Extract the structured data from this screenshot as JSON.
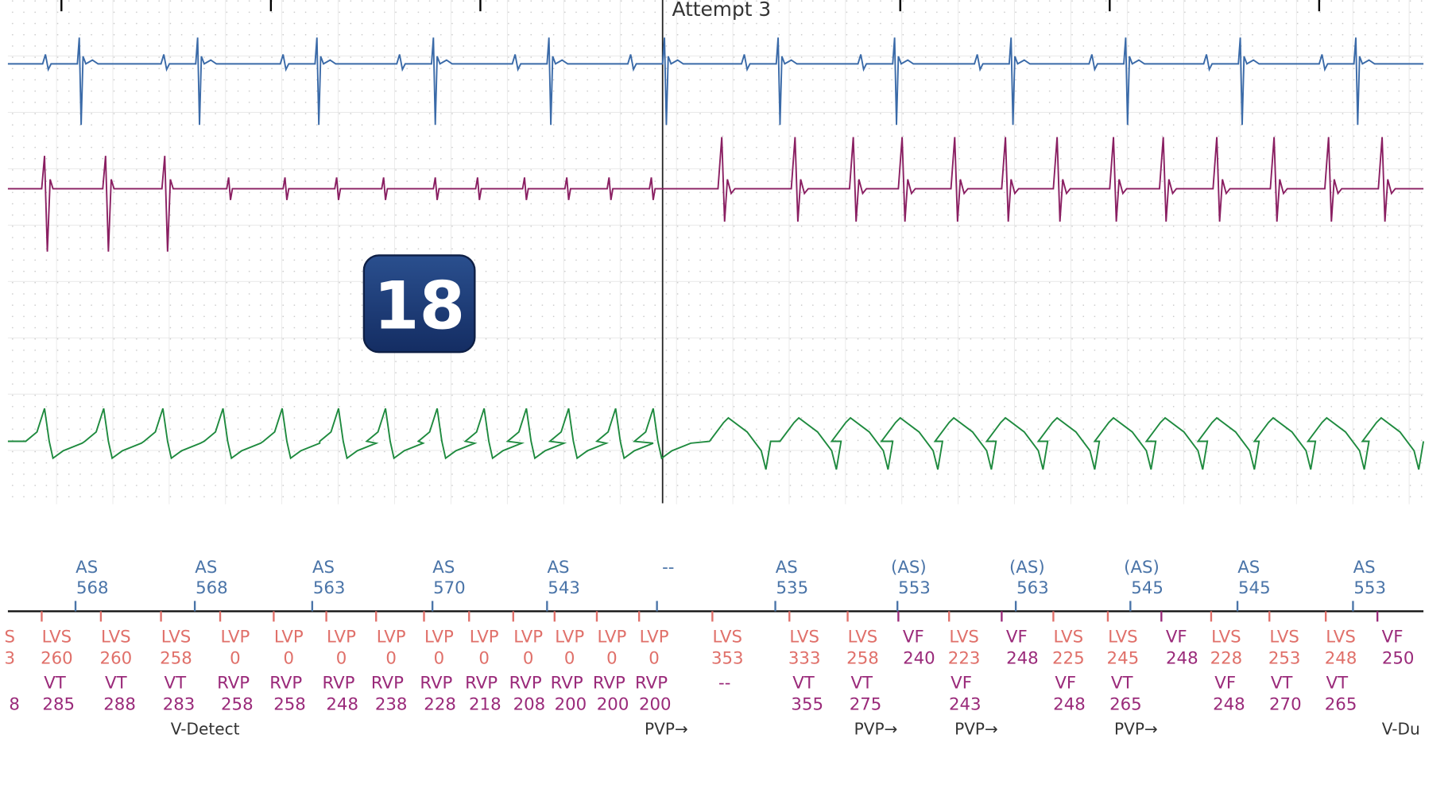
{
  "header": {
    "title": "Attempt 3"
  },
  "badge": "18",
  "atrial_markers": [
    {
      "label": "AS",
      "interval": "568"
    },
    {
      "label": "AS",
      "interval": "568"
    },
    {
      "label": "AS",
      "interval": "563"
    },
    {
      "label": "AS",
      "interval": "570"
    },
    {
      "label": "AS",
      "interval": "543"
    },
    {
      "label": "--"
    },
    {
      "label": "AS",
      "interval": "535"
    },
    {
      "label": "(AS)",
      "interval": "553"
    },
    {
      "label": "(AS)",
      "interval": "563"
    },
    {
      "label": "(AS)",
      "interval": "545"
    },
    {
      "label": "AS",
      "interval": "545"
    },
    {
      "label": "AS",
      "interval": "553"
    }
  ],
  "ventricular_markers": [
    {
      "label": "S",
      "interval": "3"
    },
    {
      "label": "LVS",
      "interval": "260"
    },
    {
      "label": "LVS",
      "interval": "260"
    },
    {
      "label": "LVS",
      "interval": "258"
    },
    {
      "label": "LVP",
      "interval": "0"
    },
    {
      "label": "LVP",
      "interval": "0"
    },
    {
      "label": "LVP",
      "interval": "0"
    },
    {
      "label": "LVP",
      "interval": "0"
    },
    {
      "label": "LVP",
      "interval": "0"
    },
    {
      "label": "LVP",
      "interval": "0"
    },
    {
      "label": "LVP",
      "interval": "0"
    },
    {
      "label": "LVP",
      "interval": "0"
    },
    {
      "label": "LVP",
      "interval": "0"
    },
    {
      "label": "LVP",
      "interval": "0"
    },
    {
      "label": "LVS",
      "interval": "353"
    },
    {
      "label": "LVS",
      "interval": "333"
    },
    {
      "label": "LVS",
      "interval": "258"
    },
    {
      "label": "VF",
      "interval": "240"
    },
    {
      "label": "LVS",
      "interval": "223"
    },
    {
      "label": "VF",
      "interval": "248"
    },
    {
      "label": "LVS",
      "interval": "225"
    },
    {
      "label": "LVS",
      "interval": "245"
    },
    {
      "label": "VF",
      "interval": "248"
    },
    {
      "label": "LVS",
      "interval": "228"
    },
    {
      "label": "LVS",
      "interval": "253"
    },
    {
      "label": "LVS",
      "interval": "248"
    },
    {
      "label": "VF",
      "interval": "250"
    }
  ],
  "rv_markers": [
    {
      "label": "8"
    },
    {
      "label": "VT",
      "interval": "285"
    },
    {
      "label": "VT",
      "interval": "288"
    },
    {
      "label": "VT",
      "interval": "283"
    },
    {
      "label": "RVP",
      "interval": "258"
    },
    {
      "label": "RVP",
      "interval": "258"
    },
    {
      "label": "RVP",
      "interval": "248"
    },
    {
      "label": "RVP",
      "interval": "238"
    },
    {
      "label": "RVP",
      "interval": "228"
    },
    {
      "label": "RVP",
      "interval": "218"
    },
    {
      "label": "RVP",
      "interval": "208"
    },
    {
      "label": "RVP",
      "interval": "200"
    },
    {
      "label": "RVP",
      "interval": "200"
    },
    {
      "label": "RVP",
      "interval": "200"
    },
    {
      "label": "--"
    },
    {
      "label": "VT",
      "interval": "355"
    },
    {
      "label": "VT",
      "interval": "275"
    },
    {
      "label": "VF",
      "interval": "243"
    },
    {
      "label": "VF",
      "interval": "248"
    },
    {
      "label": "VT",
      "interval": "265"
    },
    {
      "label": "VF",
      "interval": "248"
    },
    {
      "label": "VT",
      "interval": "270"
    },
    {
      "label": "VT",
      "interval": "265"
    }
  ],
  "annotations": [
    "V-Detect",
    "PVP→",
    "PVP→",
    "PVP→",
    "PVP→",
    "V-Du"
  ]
}
